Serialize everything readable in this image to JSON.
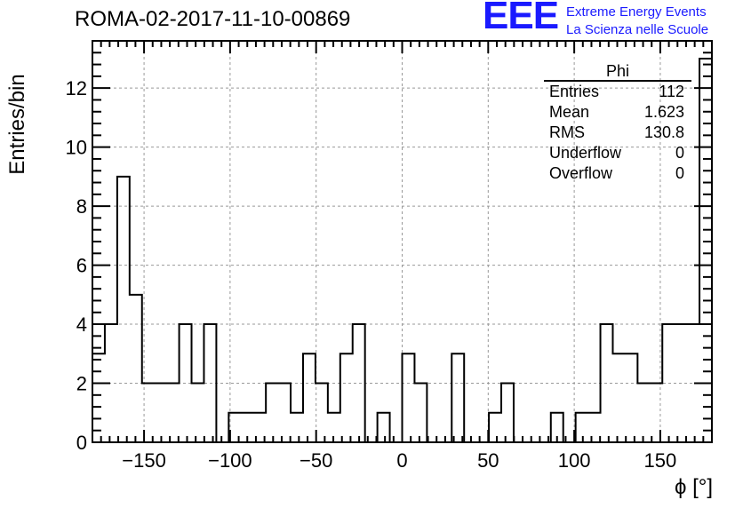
{
  "header": {
    "title": "ROMA-02-2017-11-10-00869",
    "logo_text": "EEE",
    "logo_line1": "Extreme Energy Events",
    "logo_line2": "La Scienza nelle Scuole"
  },
  "stats": {
    "title": "Phi",
    "rows": [
      {
        "label": "Entries",
        "value": "112"
      },
      {
        "label": "Mean",
        "value": "1.623"
      },
      {
        "label": "RMS",
        "value": "130.8"
      },
      {
        "label": "Underflow",
        "value": "0"
      },
      {
        "label": "Overflow",
        "value": "0"
      }
    ]
  },
  "colors": {
    "line": "#000000",
    "grid": "#999999",
    "logo": "#1a1aff"
  },
  "chart_data": {
    "type": "histogram",
    "title": "ROMA-02-2017-11-10-00869",
    "xlabel": "ϕ [°]",
    "ylabel": "Entries/bin",
    "xlim": [
      -180,
      180
    ],
    "ylim": [
      0,
      13.6
    ],
    "bin_width": 7.2,
    "bin_edges_start": -180,
    "grid": true,
    "x_ticks": [
      -150,
      -100,
      -50,
      0,
      50,
      100,
      150
    ],
    "x_tick_labels": [
      "−150",
      "−100",
      "−50",
      "0",
      "50",
      "100",
      "150"
    ],
    "y_ticks": [
      0,
      2,
      4,
      6,
      8,
      10,
      12
    ],
    "y_tick_labels": [
      "0",
      "2",
      "4",
      "6",
      "8",
      "10",
      "12"
    ],
    "values": [
      3,
      4,
      9,
      5,
      2,
      2,
      2,
      4,
      2,
      4,
      0,
      1,
      1,
      1,
      2,
      2,
      1,
      3,
      2,
      1,
      3,
      4,
      0,
      1,
      0,
      3,
      2,
      0,
      0,
      3,
      0,
      0,
      1,
      2,
      0,
      0,
      0,
      1,
      0,
      1,
      1,
      4,
      3,
      3,
      2,
      2,
      4,
      4,
      4,
      13
    ]
  }
}
